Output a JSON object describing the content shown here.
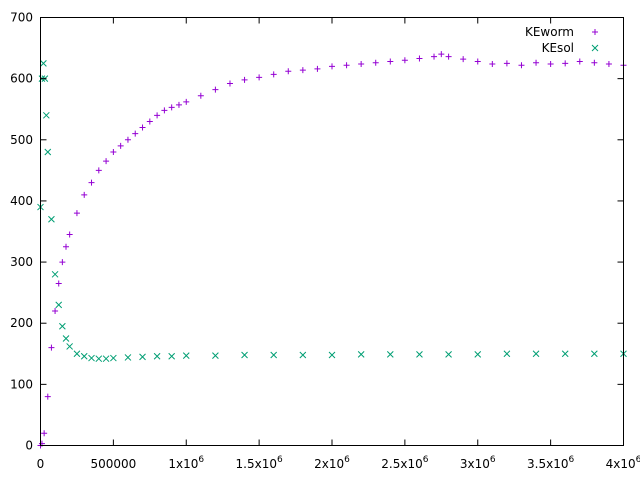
{
  "chart_data": {
    "type": "scatter",
    "xlim": [
      0,
      4000000
    ],
    "ylim": [
      0,
      700
    ],
    "x_ticks": [
      {
        "value": 0,
        "label": "0"
      },
      {
        "value": 500000,
        "label": "500000"
      },
      {
        "value": 1000000,
        "mantissa": "1x10",
        "exp": "6"
      },
      {
        "value": 1500000,
        "mantissa": "1.5x10",
        "exp": "6"
      },
      {
        "value": 2000000,
        "mantissa": "2x10",
        "exp": "6"
      },
      {
        "value": 2500000,
        "mantissa": "2.5x10",
        "exp": "6"
      },
      {
        "value": 3000000,
        "mantissa": "3x10",
        "exp": "6"
      },
      {
        "value": 3500000,
        "mantissa": "3.5x10",
        "exp": "6"
      },
      {
        "value": 4000000,
        "mantissa": "4x10",
        "exp": "6"
      }
    ],
    "y_ticks": [
      {
        "value": 0,
        "label": "0"
      },
      {
        "value": 100,
        "label": "100"
      },
      {
        "value": 200,
        "label": "200"
      },
      {
        "value": 300,
        "label": "300"
      },
      {
        "value": 400,
        "label": "400"
      },
      {
        "value": 500,
        "label": "500"
      },
      {
        "value": 600,
        "label": "600"
      },
      {
        "value": 700,
        "label": "700"
      }
    ],
    "grid": false,
    "legend_position": "top-right",
    "series": [
      {
        "name": "KEworm",
        "marker": "plus",
        "color": "#9400d3",
        "x": [
          0,
          10000,
          25000,
          50000,
          75000,
          100000,
          125000,
          150000,
          175000,
          200000,
          250000,
          300000,
          350000,
          400000,
          450000,
          500000,
          550000,
          600000,
          650000,
          700000,
          750000,
          800000,
          850000,
          900000,
          950000,
          1000000,
          1100000,
          1200000,
          1300000,
          1400000,
          1500000,
          1600000,
          1700000,
          1800000,
          1900000,
          2000000,
          2100000,
          2200000,
          2300000,
          2400000,
          2500000,
          2600000,
          2700000,
          2750000,
          2800000,
          2900000,
          3000000,
          3100000,
          3200000,
          3300000,
          3400000,
          3500000,
          3600000,
          3700000,
          3800000,
          3900000,
          4000000
        ],
        "y": [
          0,
          3,
          20,
          80,
          160,
          220,
          265,
          300,
          325,
          345,
          380,
          410,
          430,
          450,
          465,
          480,
          490,
          500,
          510,
          520,
          530,
          540,
          548,
          553,
          557,
          562,
          572,
          582,
          592,
          598,
          602,
          607,
          612,
          614,
          616,
          620,
          622,
          624,
          626,
          628,
          630,
          633,
          636,
          640,
          636,
          632,
          628,
          624,
          625,
          622,
          626,
          624,
          625,
          628,
          626,
          624,
          622
        ]
      },
      {
        "name": "KEsol",
        "marker": "cross",
        "color": "#009e73",
        "x": [
          0,
          10000,
          20000,
          30000,
          40000,
          50000,
          75000,
          100000,
          125000,
          150000,
          175000,
          200000,
          250000,
          300000,
          350000,
          400000,
          450000,
          500000,
          600000,
          700000,
          800000,
          900000,
          1000000,
          1200000,
          1400000,
          1600000,
          1800000,
          2000000,
          2200000,
          2400000,
          2600000,
          2800000,
          3000000,
          3200000,
          3400000,
          3600000,
          3800000,
          4000000
        ],
        "y": [
          390,
          600,
          625,
          600,
          540,
          480,
          370,
          280,
          230,
          195,
          175,
          162,
          150,
          146,
          143,
          142,
          142,
          143,
          144,
          145,
          146,
          146,
          147,
          147,
          148,
          148,
          148,
          148,
          149,
          149,
          149,
          149,
          149,
          150,
          150,
          150,
          150,
          150
        ]
      }
    ]
  }
}
